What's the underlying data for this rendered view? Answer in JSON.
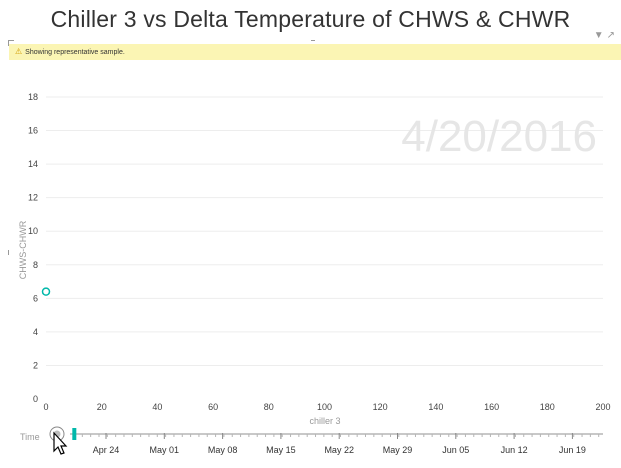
{
  "title": "Chiller 3 vs Delta Temperature of CHWS & CHWR",
  "banner": {
    "icon": "warning-icon",
    "text": "Showing representative sample."
  },
  "header_icons": [
    "filter-icon",
    "focus-mode-icon"
  ],
  "play_axis": {
    "current_date": "4/20/2016",
    "label": "Time",
    "date_ticks": [
      "Apr 24",
      "May 01",
      "May 08",
      "May 15",
      "May 22",
      "May 29",
      "Jun 05",
      "Jun 12",
      "Jun 19"
    ],
    "position": 0.04
  },
  "chart_data": {
    "type": "scatter",
    "title": "Chiller 3 vs Delta Temperature of CHWS & CHWR",
    "xlabel": "chiller 3",
    "ylabel": "CHWS-CHWR",
    "xlim": [
      0,
      200
    ],
    "ylim": [
      0,
      18
    ],
    "x_ticks": [
      0,
      20,
      40,
      60,
      80,
      100,
      120,
      140,
      160,
      180,
      200
    ],
    "y_ticks": [
      0,
      2,
      4,
      6,
      8,
      10,
      12,
      14,
      16,
      18
    ],
    "grid": true,
    "points": [
      {
        "x": 0,
        "y": 6.4
      }
    ],
    "point_color": "#01b8aa"
  }
}
